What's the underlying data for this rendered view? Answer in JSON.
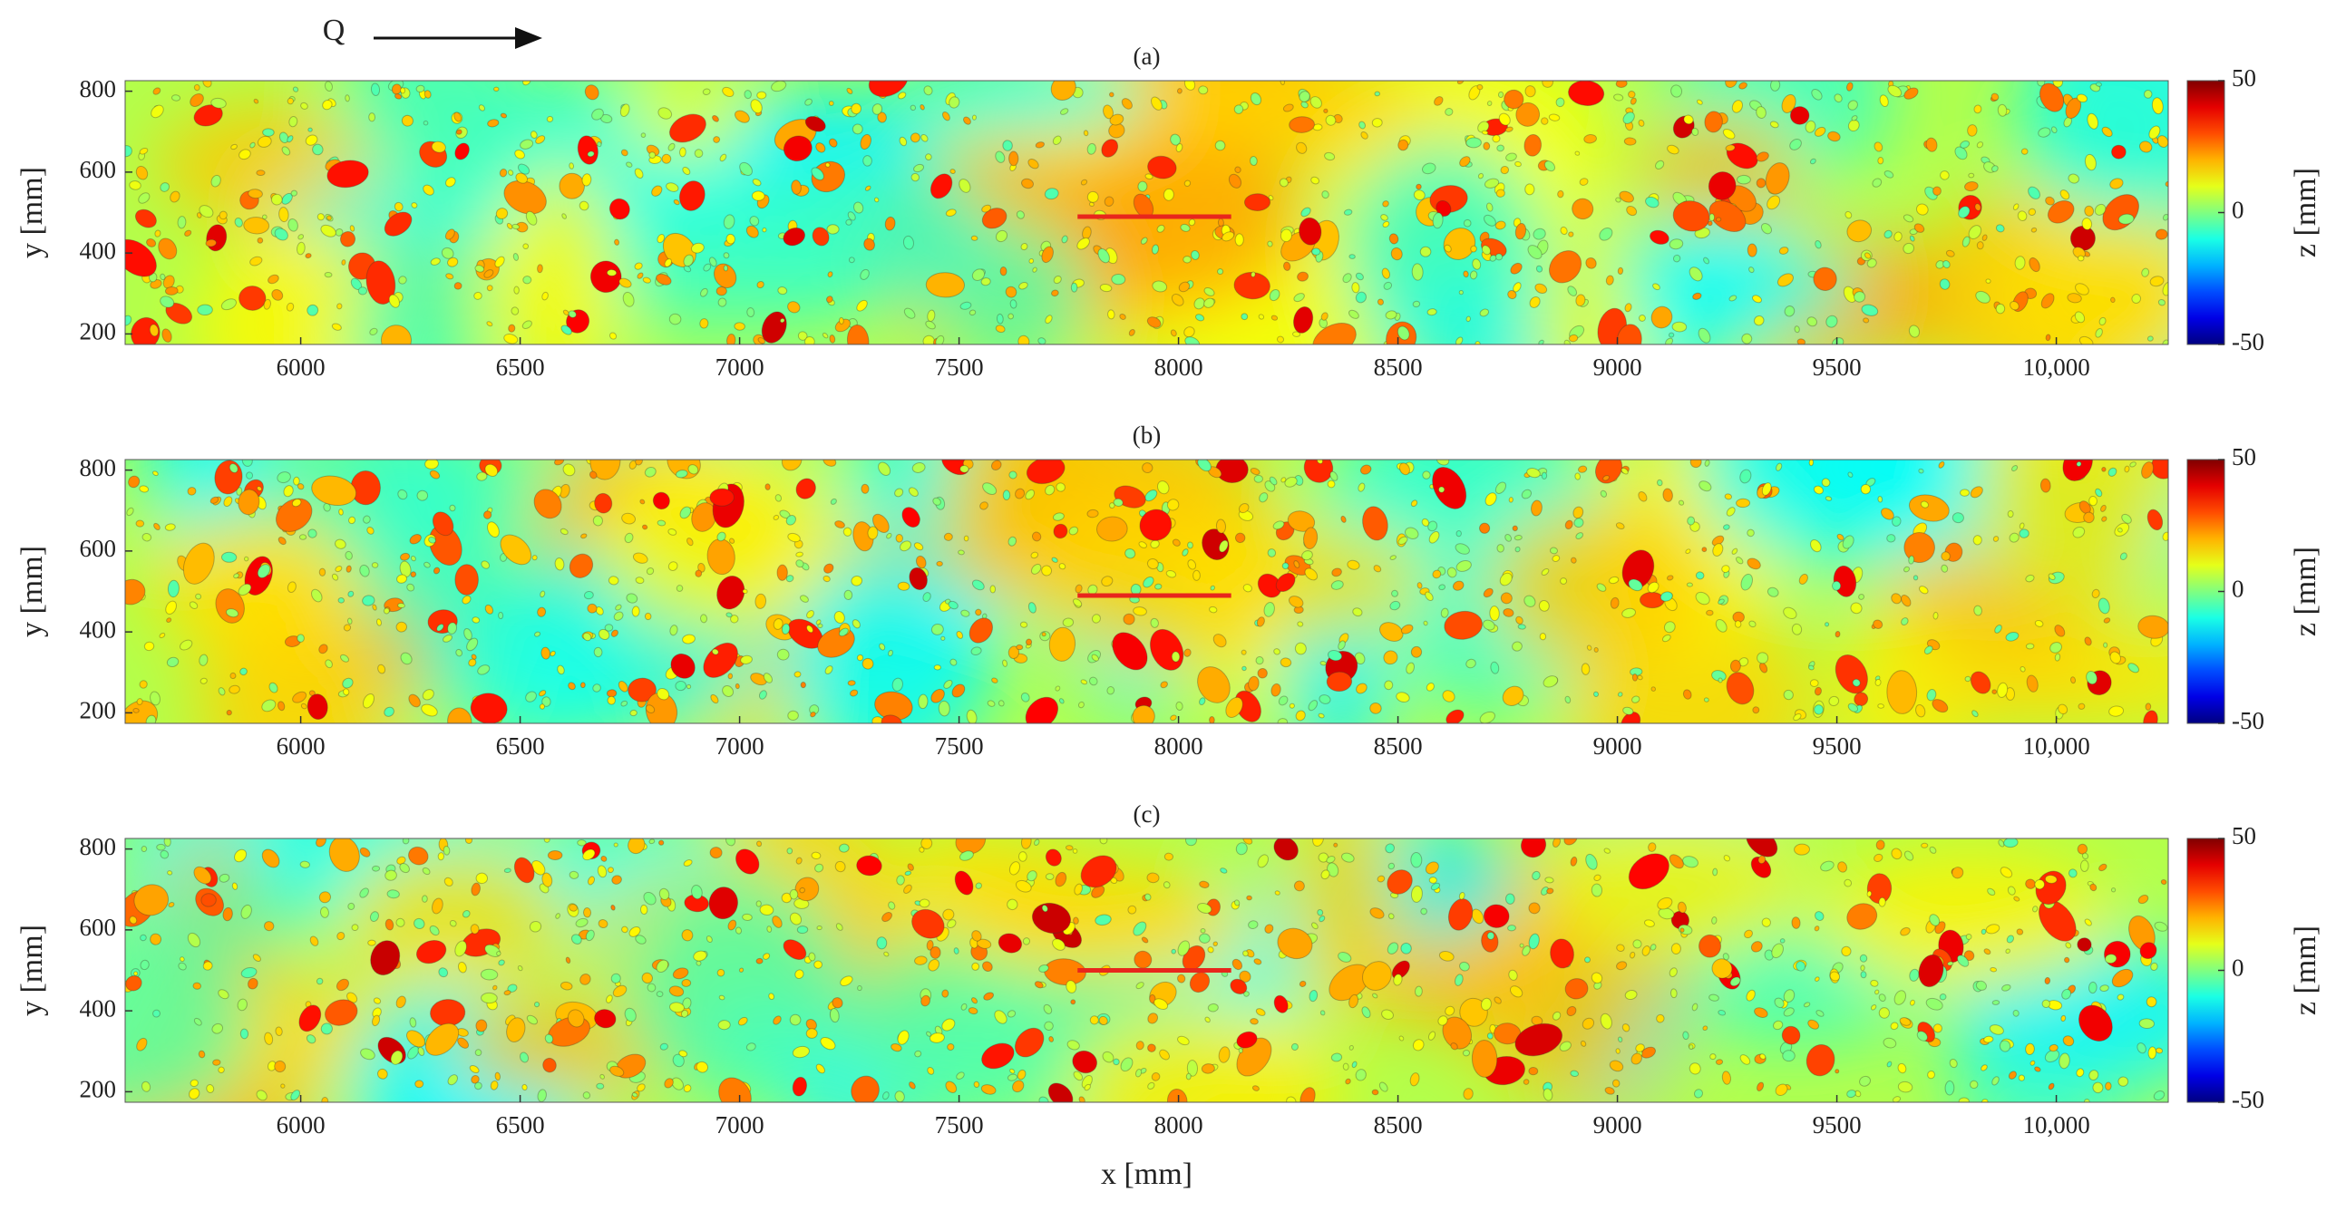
{
  "flow_direction_label": "Q",
  "chart_data": [
    {
      "type": "heatmap",
      "title": "(a)",
      "ylabel": "y [mm]",
      "xlim": [
        5600,
        10255
      ],
      "ylim": [
        174,
        826
      ],
      "xticks": [
        6000,
        6500,
        7000,
        7500,
        8000,
        8500,
        9000,
        9500,
        {
          "value": 10000,
          "label": "10,000"
        }
      ],
      "yticks": [
        200,
        400,
        600,
        800
      ],
      "colorbar": {
        "label": "z [mm]",
        "clim": [
          -50,
          50
        ],
        "ticks": [
          -50,
          0,
          50
        ],
        "colormap": "jet"
      },
      "segment": {
        "x": [
          7770,
          8120
        ],
        "y": [
          490,
          490
        ],
        "color": "#e8261c"
      }
    },
    {
      "type": "heatmap",
      "title": "(b)",
      "ylabel": "y [mm]",
      "xlim": [
        5600,
        10255
      ],
      "ylim": [
        174,
        826
      ],
      "xticks": [
        6000,
        6500,
        7000,
        7500,
        8000,
        8500,
        9000,
        9500,
        {
          "value": 10000,
          "label": "10,000"
        }
      ],
      "yticks": [
        200,
        400,
        600,
        800
      ],
      "colorbar": {
        "label": "z [mm]",
        "clim": [
          -50,
          50
        ],
        "ticks": [
          -50,
          0,
          50
        ],
        "colormap": "jet"
      },
      "segment": {
        "x": [
          7770,
          8120
        ],
        "y": [
          490,
          490
        ],
        "color": "#e8261c"
      }
    },
    {
      "type": "heatmap",
      "title": "(c)",
      "ylabel": "y [mm]",
      "xlabel": "x [mm]",
      "xlim": [
        5600,
        10255
      ],
      "ylim": [
        174,
        826
      ],
      "xticks": [
        6000,
        6500,
        7000,
        7500,
        8000,
        8500,
        9000,
        9500,
        {
          "value": 10000,
          "label": "10,000"
        }
      ],
      "yticks": [
        200,
        400,
        600,
        800
      ],
      "colorbar": {
        "label": "z [mm]",
        "clim": [
          -50,
          50
        ],
        "ticks": [
          -50,
          0,
          50
        ],
        "colormap": "jet"
      },
      "segment": {
        "x": [
          7770,
          8120
        ],
        "y": [
          500,
          500
        ],
        "color": "#e8261c"
      }
    }
  ]
}
